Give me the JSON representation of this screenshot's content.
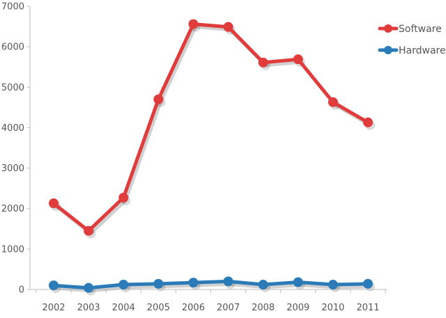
{
  "chart_data": {
    "type": "line",
    "categories": [
      "2002",
      "2003",
      "2004",
      "2005",
      "2006",
      "2007",
      "2008",
      "2009",
      "2010",
      "2011"
    ],
    "ylim": [
      0,
      7000
    ],
    "yticks": [
      0,
      1000,
      2000,
      3000,
      4000,
      5000,
      6000,
      7000
    ],
    "grid": false,
    "legend": "top-right",
    "series": [
      {
        "name": "Software",
        "color": "#e03c3c",
        "values": [
          2130,
          1450,
          2270,
          4700,
          6560,
          6490,
          5610,
          5690,
          4630,
          4130
        ]
      },
      {
        "name": "Hardware",
        "color": "#2a7bb8",
        "values": [
          100,
          40,
          120,
          140,
          170,
          200,
          120,
          180,
          120,
          140
        ]
      }
    ]
  }
}
